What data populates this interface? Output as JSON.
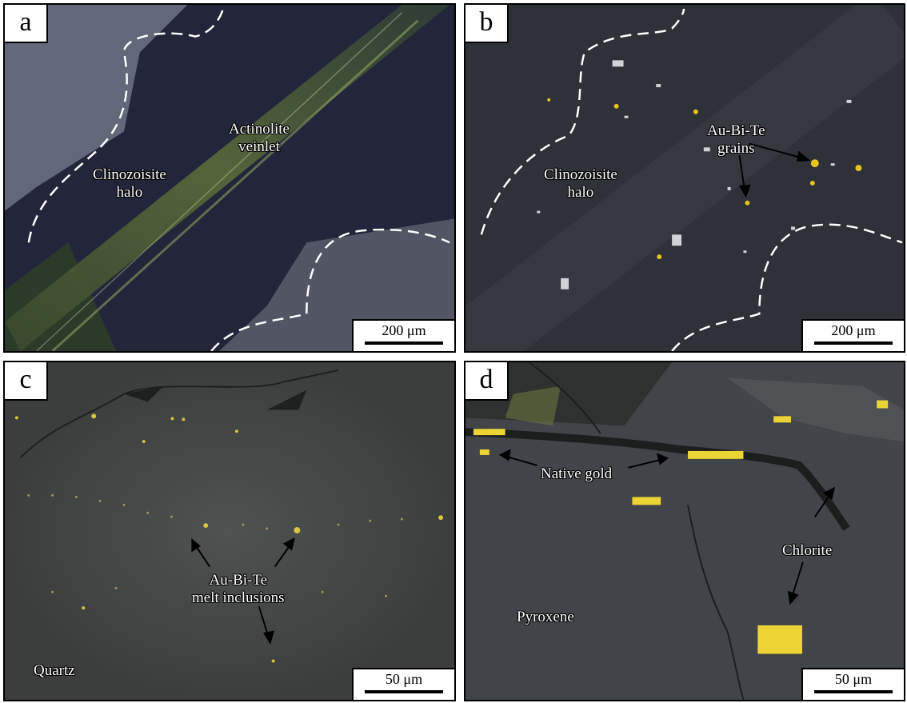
{
  "panels": {
    "a": {
      "letter": "a",
      "scale_label": "200 μm",
      "labels": {
        "actinolite": [
          "Actinolite",
          "veinlet"
        ],
        "clinozoisite": [
          "Clinozoisite",
          "halo"
        ]
      }
    },
    "b": {
      "letter": "b",
      "scale_label": "200 μm",
      "labels": {
        "grains": [
          "Au-Bi-Te",
          "grains"
        ],
        "clinozoisite": [
          "Clinozoisite",
          "halo"
        ]
      }
    },
    "c": {
      "letter": "c",
      "scale_label": "50 μm",
      "labels": {
        "melt": [
          "Au-Bi-Te",
          "melt inclusions"
        ],
        "quartz": "Quartz"
      }
    },
    "d": {
      "letter": "d",
      "scale_label": "50 μm",
      "labels": {
        "gold": "Native gold",
        "chlorite": "Chlorite",
        "pyroxene": "Pyroxene"
      }
    }
  }
}
